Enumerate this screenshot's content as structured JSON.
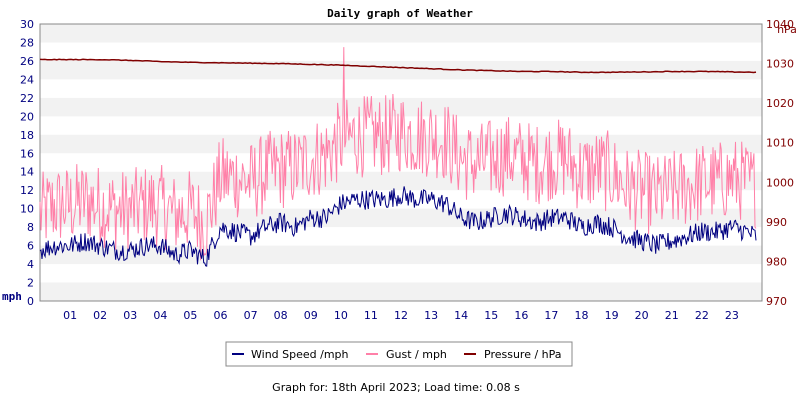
{
  "chart_data": {
    "type": "line",
    "title": "Daily graph of Weather",
    "left_axis": {
      "unit": "mph",
      "range": [
        0,
        30
      ],
      "ticks": [
        "0",
        "2",
        "4",
        "6",
        "8",
        "10",
        "12",
        "14",
        "16",
        "18",
        "20",
        "22",
        "24",
        "26",
        "28",
        "30"
      ]
    },
    "right_axis": {
      "unit": "hPa",
      "range": [
        970,
        1040
      ],
      "ticks": [
        "970",
        "980",
        "990",
        "1000",
        "1010",
        "1020",
        "1030",
        "1040"
      ]
    },
    "x_axis": {
      "range_hours": [
        0,
        24
      ],
      "ticks": [
        "01",
        "02",
        "03",
        "04",
        "05",
        "06",
        "07",
        "08",
        "09",
        "10",
        "11",
        "12",
        "13",
        "14",
        "15",
        "16",
        "17",
        "18",
        "19",
        "20",
        "21",
        "22",
        "23"
      ]
    },
    "grid": "horizontal alternating bands",
    "legend_position": "bottom",
    "series": [
      {
        "name": "Wind Speed /mph",
        "axis": "left",
        "color": "#000080",
        "x": [
          0,
          0.5,
          1,
          1.5,
          2,
          2.5,
          3,
          3.5,
          4,
          4.5,
          5,
          5.5,
          6,
          6.5,
          7,
          7.5,
          8,
          8.5,
          9,
          9.5,
          10,
          10.5,
          11,
          11.5,
          12,
          12.5,
          13,
          13.5,
          14,
          14.5,
          15,
          15.5,
          16,
          16.5,
          17,
          17.5,
          18,
          18.5,
          19,
          19.5,
          20,
          20.5,
          21,
          21.5,
          22,
          22.5,
          23,
          23.5,
          23.8
        ],
        "values": [
          5.5,
          6,
          6,
          6.5,
          6,
          5.5,
          5.5,
          6,
          6,
          5,
          5.5,
          4.5,
          8,
          7.5,
          7,
          8,
          8.5,
          8,
          9,
          9,
          10.5,
          11,
          11,
          11,
          11.5,
          11,
          11,
          10.5,
          9,
          8.5,
          9,
          9.5,
          9,
          8.5,
          9,
          9,
          8,
          8.5,
          8,
          7,
          6.5,
          6,
          6.5,
          7,
          7.5,
          7.5,
          8,
          7.5,
          7
        ]
      },
      {
        "name": "Gust / mph",
        "axis": "left",
        "color": "#ff80a8",
        "x": [
          0,
          0.5,
          1,
          1.5,
          2,
          2.5,
          3,
          3.5,
          4,
          4.5,
          5,
          5.5,
          6,
          6.5,
          7,
          7.5,
          8,
          8.5,
          9,
          9.5,
          10,
          10.5,
          11,
          11.5,
          12,
          12.5,
          13,
          13.5,
          14,
          14.5,
          15,
          15.5,
          16,
          16.5,
          17,
          17.5,
          18,
          18.5,
          19,
          19.5,
          20,
          20.5,
          21,
          21.5,
          22,
          22.5,
          23,
          23.5,
          23.8
        ],
        "values": [
          8,
          9,
          9,
          9.5,
          9,
          8.5,
          8.5,
          9,
          9,
          8,
          8.5,
          7,
          12,
          12,
          11.5,
          12.5,
          13,
          13,
          14,
          14.5,
          16,
          16.5,
          16.5,
          16.5,
          17,
          16.5,
          16.5,
          16,
          14,
          13.5,
          14,
          14.5,
          14,
          13.5,
          14,
          14,
          12.5,
          13,
          12.5,
          11,
          10.5,
          10,
          10.5,
          11,
          11.5,
          11.5,
          12,
          11.5,
          11
        ]
      },
      {
        "name": "Pressure / hPa",
        "axis": "right",
        "color": "#800000",
        "x": [
          0,
          1,
          2,
          3,
          4,
          5,
          6,
          7,
          8,
          9,
          10,
          11,
          12,
          13,
          14,
          15,
          16,
          17,
          18,
          19,
          20,
          21,
          22,
          23,
          23.8
        ],
        "values": [
          1031,
          1031,
          1031,
          1030.8,
          1030.5,
          1030.3,
          1030.2,
          1030.1,
          1030,
          1029.8,
          1029.6,
          1029.3,
          1029,
          1028.7,
          1028.4,
          1028.2,
          1028,
          1028,
          1027.8,
          1027.8,
          1027.9,
          1028,
          1028,
          1027.9,
          1027.8
        ]
      }
    ],
    "peak_gust": {
      "x": 10.1,
      "value": 27.5
    },
    "footer": "Graph for: 18th April 2023; Load time: 0.08 s"
  }
}
